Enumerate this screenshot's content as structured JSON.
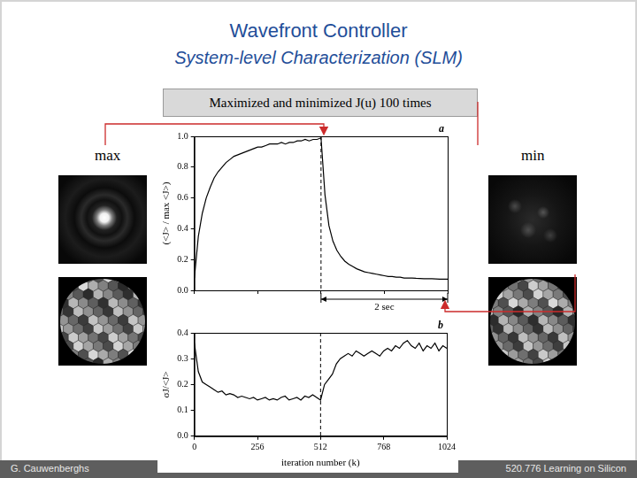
{
  "header": {
    "title": "Wavefront Controller",
    "subtitle": "System-level Characterization (SLM)",
    "banner": "Maximized and minimized J(u) 100 times"
  },
  "labels": {
    "left": "max",
    "right": "min"
  },
  "footer": {
    "left": "G. Cauwenberghs",
    "right": "520.776 Learning on Silicon"
  },
  "chart_data": [
    {
      "type": "line",
      "title": "a",
      "y_label": "(<J> / max <J>)",
      "x": [
        0,
        16,
        32,
        48,
        64,
        80,
        96,
        112,
        128,
        144,
        160,
        176,
        192,
        208,
        224,
        240,
        256,
        272,
        288,
        304,
        320,
        336,
        352,
        368,
        384,
        400,
        416,
        432,
        448,
        464,
        480,
        496,
        512,
        528,
        544,
        560,
        576,
        592,
        608,
        624,
        640,
        656,
        672,
        688,
        704,
        720,
        736,
        752,
        768,
        784,
        800,
        816,
        832,
        848,
        864,
        880,
        896,
        912,
        928,
        944,
        960,
        976,
        992,
        1008,
        1024
      ],
      "values": [
        0.08,
        0.35,
        0.5,
        0.6,
        0.67,
        0.73,
        0.77,
        0.8,
        0.83,
        0.85,
        0.87,
        0.88,
        0.89,
        0.9,
        0.91,
        0.92,
        0.93,
        0.93,
        0.94,
        0.95,
        0.95,
        0.95,
        0.96,
        0.95,
        0.96,
        0.96,
        0.97,
        0.97,
        0.98,
        0.97,
        0.98,
        0.98,
        0.99,
        0.62,
        0.42,
        0.32,
        0.26,
        0.22,
        0.19,
        0.17,
        0.155,
        0.14,
        0.13,
        0.12,
        0.115,
        0.11,
        0.105,
        0.1,
        0.095,
        0.09,
        0.09,
        0.085,
        0.085,
        0.08,
        0.08,
        0.08,
        0.078,
        0.077,
        0.076,
        0.075,
        0.075,
        0.074,
        0.073,
        0.073,
        0.072
      ],
      "color": "#000000",
      "marker": "none",
      "line_style": "solid",
      "xlim": [
        0,
        1024
      ],
      "xticks": [
        0,
        256,
        512,
        768,
        1024
      ],
      "ylim": [
        0,
        1
      ],
      "yticks": [
        {
          "value": 0,
          "label": "0.0"
        },
        {
          "value": 0.2,
          "label": "0.2"
        },
        {
          "value": 0.4,
          "label": "0.4"
        },
        {
          "value": 0.6,
          "label": "0.6"
        },
        {
          "value": 0.8,
          "label": "0.8"
        },
        {
          "value": 1,
          "label": "1.0"
        }
      ],
      "grid": false,
      "tick_labels": "y",
      "vline_x": 512,
      "annotations": [
        {
          "text": "2 sec",
          "x_start": 512,
          "x_end": 1024
        }
      ]
    },
    {
      "type": "line",
      "title": "b",
      "y_label": "σJ/<J>",
      "x_label": "iteration number (k)",
      "x": [
        0,
        16,
        32,
        48,
        64,
        80,
        96,
        112,
        128,
        144,
        160,
        176,
        192,
        208,
        224,
        240,
        256,
        272,
        288,
        304,
        320,
        336,
        352,
        368,
        384,
        400,
        416,
        432,
        448,
        464,
        480,
        496,
        512,
        528,
        544,
        560,
        576,
        592,
        608,
        624,
        640,
        656,
        672,
        688,
        704,
        720,
        736,
        752,
        768,
        784,
        800,
        816,
        832,
        848,
        864,
        880,
        896,
        912,
        928,
        944,
        960,
        976,
        992,
        1008,
        1024
      ],
      "values": [
        0.36,
        0.25,
        0.21,
        0.2,
        0.19,
        0.18,
        0.17,
        0.175,
        0.16,
        0.165,
        0.16,
        0.15,
        0.155,
        0.15,
        0.145,
        0.15,
        0.14,
        0.145,
        0.15,
        0.14,
        0.145,
        0.14,
        0.15,
        0.155,
        0.14,
        0.145,
        0.15,
        0.14,
        0.155,
        0.15,
        0.16,
        0.15,
        0.14,
        0.2,
        0.22,
        0.24,
        0.28,
        0.3,
        0.31,
        0.32,
        0.31,
        0.33,
        0.32,
        0.31,
        0.32,
        0.33,
        0.32,
        0.31,
        0.33,
        0.34,
        0.33,
        0.35,
        0.34,
        0.36,
        0.37,
        0.35,
        0.34,
        0.36,
        0.33,
        0.35,
        0.34,
        0.36,
        0.33,
        0.35,
        0.34
      ],
      "color": "#000000",
      "marker": "none",
      "line_style": "solid",
      "xlim": [
        0,
        1024
      ],
      "xticks": [
        0,
        256,
        512,
        768,
        1024
      ],
      "ylim": [
        0,
        0.4
      ],
      "yticks": [
        {
          "value": 0,
          "label": "0.0"
        },
        {
          "value": 0.1,
          "label": "0.1"
        },
        {
          "value": 0.2,
          "label": "0.2"
        },
        {
          "value": 0.3,
          "label": "0.3"
        },
        {
          "value": 0.4,
          "label": "0.4"
        }
      ],
      "grid": false,
      "vline_x": 512
    }
  ]
}
